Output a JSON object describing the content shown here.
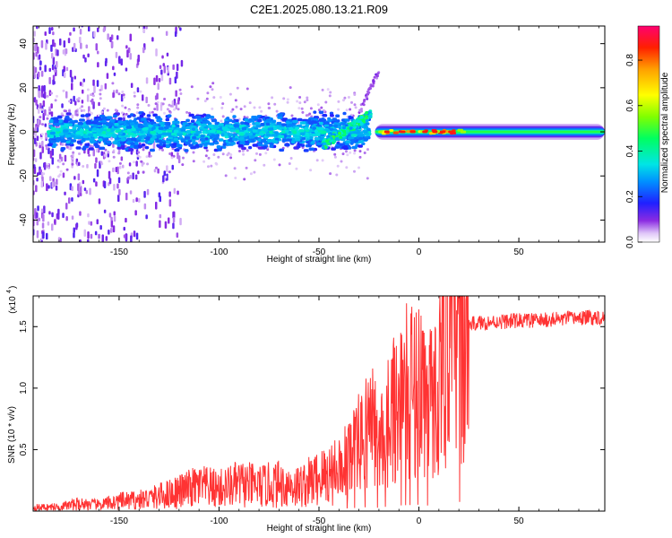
{
  "figure": {
    "title": "C2E1.2025.080.13.21.R09"
  },
  "chart_data": [
    {
      "type": "heatmap",
      "title": "C2E1.2025.080.13.21.R09",
      "xlabel": "Height of straight line (km)",
      "ylabel": "Frequency (Hz)",
      "xlim": [
        -193,
        93
      ],
      "ylim": [
        -50,
        48
      ],
      "x_ticks": [
        -150,
        -100,
        -50,
        0,
        50
      ],
      "x_tick_labels": [
        "-150",
        "-100",
        "-50",
        "0",
        "50"
      ],
      "y_ticks": [
        -40,
        -20,
        0,
        20,
        40
      ],
      "y_tick_labels": [
        "-40",
        "-20",
        "0",
        "20",
        "40"
      ],
      "colorbar": {
        "label": "Normalized spectral amplitude",
        "range": [
          0,
          0.95
        ],
        "ticks": [
          0.0,
          0.2,
          0.4,
          0.6,
          0.8
        ],
        "tick_labels": [
          "0.0",
          "0.2",
          "0.4",
          "0.6",
          "0.8"
        ]
      },
      "features": [
        {
          "x_range": [
            -193,
            -165
          ],
          "freq_center": 0,
          "freq_halfwidth": 48,
          "amplitude": 0.12
        },
        {
          "x_range": [
            -185,
            -25
          ],
          "freq_center": 0,
          "freq_halfwidth": 8,
          "amplitude": 0.35
        },
        {
          "x_range": [
            -45,
            -25
          ],
          "freq_center_from": -5,
          "freq_center_to": 10,
          "amplitude": 0.45
        },
        {
          "x_range": [
            -20,
            25
          ],
          "freq_center": 0,
          "freq_halfwidth": 1.5,
          "amplitude": 0.9
        },
        {
          "x_range": [
            25,
            93
          ],
          "freq_center": 0,
          "freq_halfwidth": 2,
          "amplitude": 0.45
        }
      ],
      "grid": false
    },
    {
      "type": "line",
      "xlabel": "Height of straight line (km)",
      "ylabel": "SNR (10 * v/v)",
      "y_multiplier_label": "(x10",
      "y_multiplier_exp": "4",
      "xlim": [
        -193,
        93
      ],
      "ylim": [
        0,
        17500
      ],
      "x_ticks": [
        -150,
        -100,
        -50,
        0,
        50
      ],
      "x_tick_labels": [
        "-150",
        "-100",
        "-50",
        "0",
        "50"
      ],
      "y_ticks": [
        5000,
        10000,
        15000
      ],
      "y_tick_labels": [
        "0.5",
        "1.0",
        "1.5"
      ],
      "color": "#ff3333",
      "grid": false,
      "series": [
        {
          "x": [
            -193,
            -180,
            -170,
            -160,
            -150,
            -140,
            -130,
            -120,
            -110,
            -100,
            -90,
            -80,
            -70,
            -60,
            -50,
            -45,
            -40,
            -35,
            -30,
            -27,
            -25,
            -22,
            -20,
            -18,
            -15,
            -12,
            -10,
            -8,
            -5,
            -2,
            0,
            3,
            5,
            8,
            10,
            12,
            15,
            18,
            20,
            25,
            30,
            40,
            50,
            60,
            70,
            80,
            93
          ],
          "values": [
            300,
            350,
            600,
            500,
            800,
            900,
            1200,
            1600,
            2000,
            1800,
            2200,
            2000,
            2200,
            2000,
            2700,
            3000,
            3800,
            4500,
            5500,
            6000,
            7500,
            6500,
            5000,
            6000,
            8000,
            8500,
            9000,
            9500,
            9800,
            10200,
            10500,
            9500,
            9000,
            9000,
            11000,
            12000,
            13000,
            14000,
            14800,
            15200,
            15300,
            15400,
            15500,
            15500,
            15600,
            15700,
            15800
          ]
        }
      ]
    }
  ]
}
